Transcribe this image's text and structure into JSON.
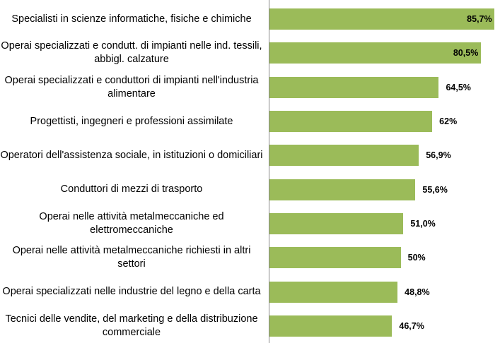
{
  "chart_data": {
    "type": "bar",
    "orientation": "horizontal",
    "categories": [
      "Specialisti in scienze informatiche, fisiche e chimiche",
      "Operai specializzati e condutt. di impianti nelle ind. tessili, abbigl. calzature",
      "Operai specializzati e conduttori di impianti nell'industria alimentare",
      "Progettisti, ingegneri e professioni assimilate",
      "Operatori dell'assistenza sociale, in istituzioni o domiciliari",
      "Conduttori di mezzi di trasporto",
      "Operai nelle attività metalmeccaniche ed elettromeccaniche",
      "Operai nelle attività metalmeccaniche richiesti in altri settori",
      "Operai specializzati nelle industrie del legno e della carta",
      "Tecnici delle vendite, del marketing e della distribuzione commerciale"
    ],
    "values": [
      85.7,
      80.5,
      64.5,
      62,
      56.9,
      55.6,
      51.0,
      50,
      48.8,
      46.7
    ],
    "value_labels": [
      "85,7%",
      "80,5%",
      "64,5%",
      "62%",
      "56,9%",
      "55,6%",
      "51,0%",
      "50%",
      "48,8%",
      "46,7%"
    ],
    "color": "#9bbb59",
    "xlim": [
      0,
      87
    ]
  }
}
